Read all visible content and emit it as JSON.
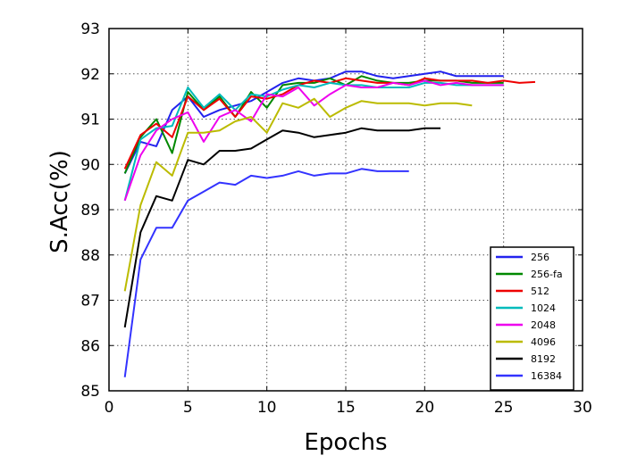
{
  "chart_data": {
    "type": "line",
    "title": "",
    "xlabel": "Epochs",
    "ylabel": "S.Acc(%)",
    "xlim": [
      0,
      30
    ],
    "ylim": [
      85,
      93
    ],
    "xticks": [
      0,
      5,
      10,
      15,
      20,
      25,
      30
    ],
    "yticks": [
      85,
      86,
      87,
      88,
      89,
      90,
      91,
      92,
      93
    ],
    "grid": true,
    "legend_position": "lower-right",
    "series": [
      {
        "name": "256",
        "color": "#2222ee",
        "x": [
          1,
          2,
          3,
          4,
          5,
          6,
          7,
          8,
          9,
          10,
          11,
          12,
          13,
          14,
          15,
          16,
          17,
          18,
          19,
          20,
          21,
          22,
          23,
          24,
          25
        ],
        "y": [
          89.8,
          90.5,
          90.4,
          91.2,
          91.5,
          91.05,
          91.2,
          91.3,
          91.4,
          91.6,
          91.8,
          91.9,
          91.85,
          91.9,
          92.05,
          92.05,
          91.95,
          91.9,
          91.95,
          92.0,
          92.05,
          91.95,
          91.95,
          91.95,
          91.95
        ]
      },
      {
        "name": "256-fa",
        "color": "#008800",
        "x": [
          1,
          2,
          3,
          4,
          5,
          6,
          7,
          8,
          9,
          10,
          11,
          12,
          13,
          14,
          15,
          16,
          17,
          18,
          19,
          20,
          21,
          22,
          23,
          24,
          25
        ],
        "y": [
          89.8,
          90.6,
          91.0,
          90.25,
          91.6,
          91.2,
          91.5,
          91.05,
          91.6,
          91.25,
          91.75,
          91.8,
          91.8,
          91.9,
          91.75,
          91.95,
          91.85,
          91.8,
          91.8,
          91.85,
          91.85,
          91.85,
          91.8,
          91.8,
          91.8
        ]
      },
      {
        "name": "512",
        "color": "#ee0000",
        "x": [
          1,
          2,
          3,
          4,
          5,
          6,
          7,
          8,
          9,
          10,
          11,
          12,
          13,
          14,
          15,
          16,
          17,
          18,
          19,
          20,
          21,
          22,
          23,
          24,
          25,
          26,
          27
        ],
        "y": [
          89.9,
          90.65,
          90.9,
          90.6,
          91.5,
          91.2,
          91.45,
          91.05,
          91.5,
          91.45,
          91.55,
          91.75,
          91.85,
          91.8,
          91.9,
          91.85,
          91.8,
          91.8,
          91.75,
          91.9,
          91.85,
          91.85,
          91.85,
          91.8,
          91.85,
          91.8,
          91.82
        ]
      },
      {
        "name": "1024",
        "color": "#00bbbb",
        "x": [
          1,
          2,
          3,
          4,
          5,
          6,
          7,
          8,
          9,
          10,
          11,
          12,
          13,
          14,
          15,
          16,
          17,
          18,
          19,
          20,
          21,
          22,
          23,
          24,
          25
        ],
        "y": [
          89.2,
          90.55,
          90.8,
          90.85,
          91.7,
          91.25,
          91.55,
          91.2,
          91.55,
          91.5,
          91.65,
          91.75,
          91.7,
          91.8,
          91.75,
          91.75,
          91.7,
          91.7,
          91.7,
          91.8,
          91.8,
          91.75,
          91.75,
          91.75,
          91.75
        ]
      },
      {
        "name": "2048",
        "color": "#ee00ee",
        "x": [
          1,
          2,
          3,
          4,
          5,
          6,
          7,
          8,
          9,
          10,
          11,
          12,
          13,
          14,
          15,
          16,
          17,
          18,
          19,
          20,
          21,
          22,
          23,
          24,
          25
        ],
        "y": [
          89.2,
          90.2,
          90.75,
          91.0,
          91.15,
          90.5,
          91.05,
          91.2,
          90.95,
          91.55,
          91.5,
          91.7,
          91.3,
          91.55,
          91.75,
          91.7,
          91.7,
          91.8,
          91.75,
          91.85,
          91.75,
          91.8,
          91.75,
          91.75,
          91.75
        ]
      },
      {
        "name": "4096",
        "color": "#bbbb00",
        "x": [
          1,
          2,
          3,
          4,
          5,
          6,
          7,
          8,
          9,
          10,
          11,
          12,
          13,
          14,
          15,
          16,
          17,
          18,
          19,
          20,
          21,
          22,
          23
        ],
        "y": [
          87.2,
          89.1,
          90.05,
          89.75,
          90.7,
          90.7,
          90.75,
          90.95,
          91.05,
          90.7,
          91.35,
          91.25,
          91.45,
          91.05,
          91.25,
          91.4,
          91.35,
          91.35,
          91.35,
          91.3,
          91.35,
          91.35,
          91.3
        ]
      },
      {
        "name": "8192",
        "color": "#000000",
        "x": [
          1,
          2,
          3,
          4,
          5,
          6,
          7,
          8,
          9,
          10,
          11,
          12,
          13,
          14,
          15,
          16,
          17,
          18,
          19,
          20,
          21
        ],
        "y": [
          86.4,
          88.5,
          89.3,
          89.2,
          90.1,
          90.0,
          90.3,
          90.3,
          90.35,
          90.55,
          90.75,
          90.7,
          90.6,
          90.65,
          90.7,
          90.8,
          90.75,
          90.75,
          90.75,
          90.8,
          90.8
        ]
      },
      {
        "name": "16384",
        "color": "#3333ff",
        "x": [
          1,
          2,
          3,
          4,
          5,
          6,
          7,
          8,
          9,
          10,
          11,
          12,
          13,
          14,
          15,
          16,
          17,
          18,
          19
        ],
        "y": [
          85.3,
          87.9,
          88.6,
          88.6,
          89.2,
          89.4,
          89.6,
          89.55,
          89.75,
          89.7,
          89.75,
          89.85,
          89.75,
          89.8,
          89.8,
          89.9,
          89.85,
          89.85,
          89.85
        ]
      }
    ]
  }
}
